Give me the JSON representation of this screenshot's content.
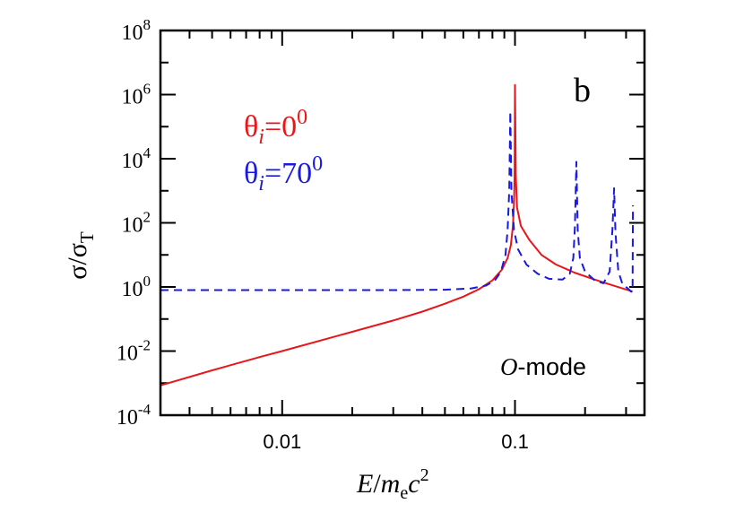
{
  "chart_data": {
    "type": "line",
    "panel_label": "b",
    "xlabel": {
      "italic_lead": "E",
      "slash": "/",
      "italic_m": "m",
      "sub_e": "e",
      "italic_c": "c",
      "sup_2": "2"
    },
    "ylabel": {
      "sigma": "σ",
      "slash": "/",
      "sigma2": "σ",
      "sub_T": "T"
    },
    "xscale": "log",
    "yscale": "log",
    "xlim": [
      0.003,
      0.36
    ],
    "ylim": [
      0.0001,
      100000000
    ],
    "x_tick_labels": [
      {
        "value": 0.01,
        "label": "0.01"
      },
      {
        "value": 0.1,
        "label": "0.1"
      }
    ],
    "y_tick_labels": [
      {
        "value": 0.0001,
        "base": "10",
        "exp": "-4"
      },
      {
        "value": 0.01,
        "base": "10",
        "exp": "-2"
      },
      {
        "value": 1,
        "base": "10",
        "exp": "0"
      },
      {
        "value": 100,
        "base": "10",
        "exp": "2"
      },
      {
        "value": 10000,
        "base": "10",
        "exp": "4"
      },
      {
        "value": 1000000,
        "base": "10",
        "exp": "6"
      },
      {
        "value": 100000000,
        "base": "10",
        "exp": "8"
      }
    ],
    "annotation": {
      "italic": "O",
      "rest": "-mode"
    },
    "legend_placement": "top-left",
    "series": [
      {
        "legend": {
          "theta": "θ",
          "sub": "i",
          "eq": "=0",
          "sup": "0"
        },
        "color": "#e8161b",
        "dash": "solid",
        "points": [
          [
            0.003,
            0.00085
          ],
          [
            0.005,
            0.0025
          ],
          [
            0.008,
            0.0065
          ],
          [
            0.01,
            0.01
          ],
          [
            0.02,
            0.04
          ],
          [
            0.03,
            0.09
          ],
          [
            0.04,
            0.17
          ],
          [
            0.05,
            0.3
          ],
          [
            0.06,
            0.5
          ],
          [
            0.07,
            0.85
          ],
          [
            0.08,
            1.6
          ],
          [
            0.088,
            3.5
          ],
          [
            0.093,
            8
          ],
          [
            0.096,
            20
          ],
          [
            0.098,
            80
          ],
          [
            0.099,
            400
          ],
          [
            0.0996,
            3000
          ],
          [
            0.1,
            2000000
          ],
          [
            0.1008,
            3000
          ],
          [
            0.102,
            300
          ],
          [
            0.106,
            80
          ],
          [
            0.115,
            30
          ],
          [
            0.13,
            10
          ],
          [
            0.15,
            5
          ],
          [
            0.18,
            2.8
          ],
          [
            0.22,
            1.7
          ],
          [
            0.27,
            1.05
          ],
          [
            0.32,
            0.72
          ]
        ]
      },
      {
        "legend": {
          "theta": "θ",
          "sub": "i",
          "eq": "=70",
          "sup": "0"
        },
        "color": "#1a1adf",
        "dash": "dashed",
        "points": [
          [
            0.003,
            0.8
          ],
          [
            0.01,
            0.8
          ],
          [
            0.03,
            0.8
          ],
          [
            0.05,
            0.82
          ],
          [
            0.065,
            0.9
          ],
          [
            0.075,
            1.1
          ],
          [
            0.082,
            1.6
          ],
          [
            0.087,
            3
          ],
          [
            0.091,
            10
          ],
          [
            0.093,
            60
          ],
          [
            0.0945,
            1000
          ],
          [
            0.0955,
            300000
          ],
          [
            0.0965,
            1000
          ],
          [
            0.099,
            60
          ],
          [
            0.103,
            15
          ],
          [
            0.112,
            5
          ],
          [
            0.125,
            2.6
          ],
          [
            0.14,
            1.8
          ],
          [
            0.16,
            1.7
          ],
          [
            0.172,
            2.6
          ],
          [
            0.178,
            8
          ],
          [
            0.181,
            80
          ],
          [
            0.1835,
            8000
          ],
          [
            0.186,
            60
          ],
          [
            0.19,
            8
          ],
          [
            0.2,
            3
          ],
          [
            0.22,
            1.6
          ],
          [
            0.24,
            1.3
          ],
          [
            0.255,
            3
          ],
          [
            0.262,
            60
          ],
          [
            0.2665,
            1200
          ],
          [
            0.27,
            50
          ],
          [
            0.278,
            3
          ],
          [
            0.29,
            1.2
          ],
          [
            0.305,
            0.9
          ],
          [
            0.315,
            0.72
          ],
          [
            0.32,
            0.7
          ],
          [
            0.321,
            350
          ]
        ]
      }
    ]
  }
}
